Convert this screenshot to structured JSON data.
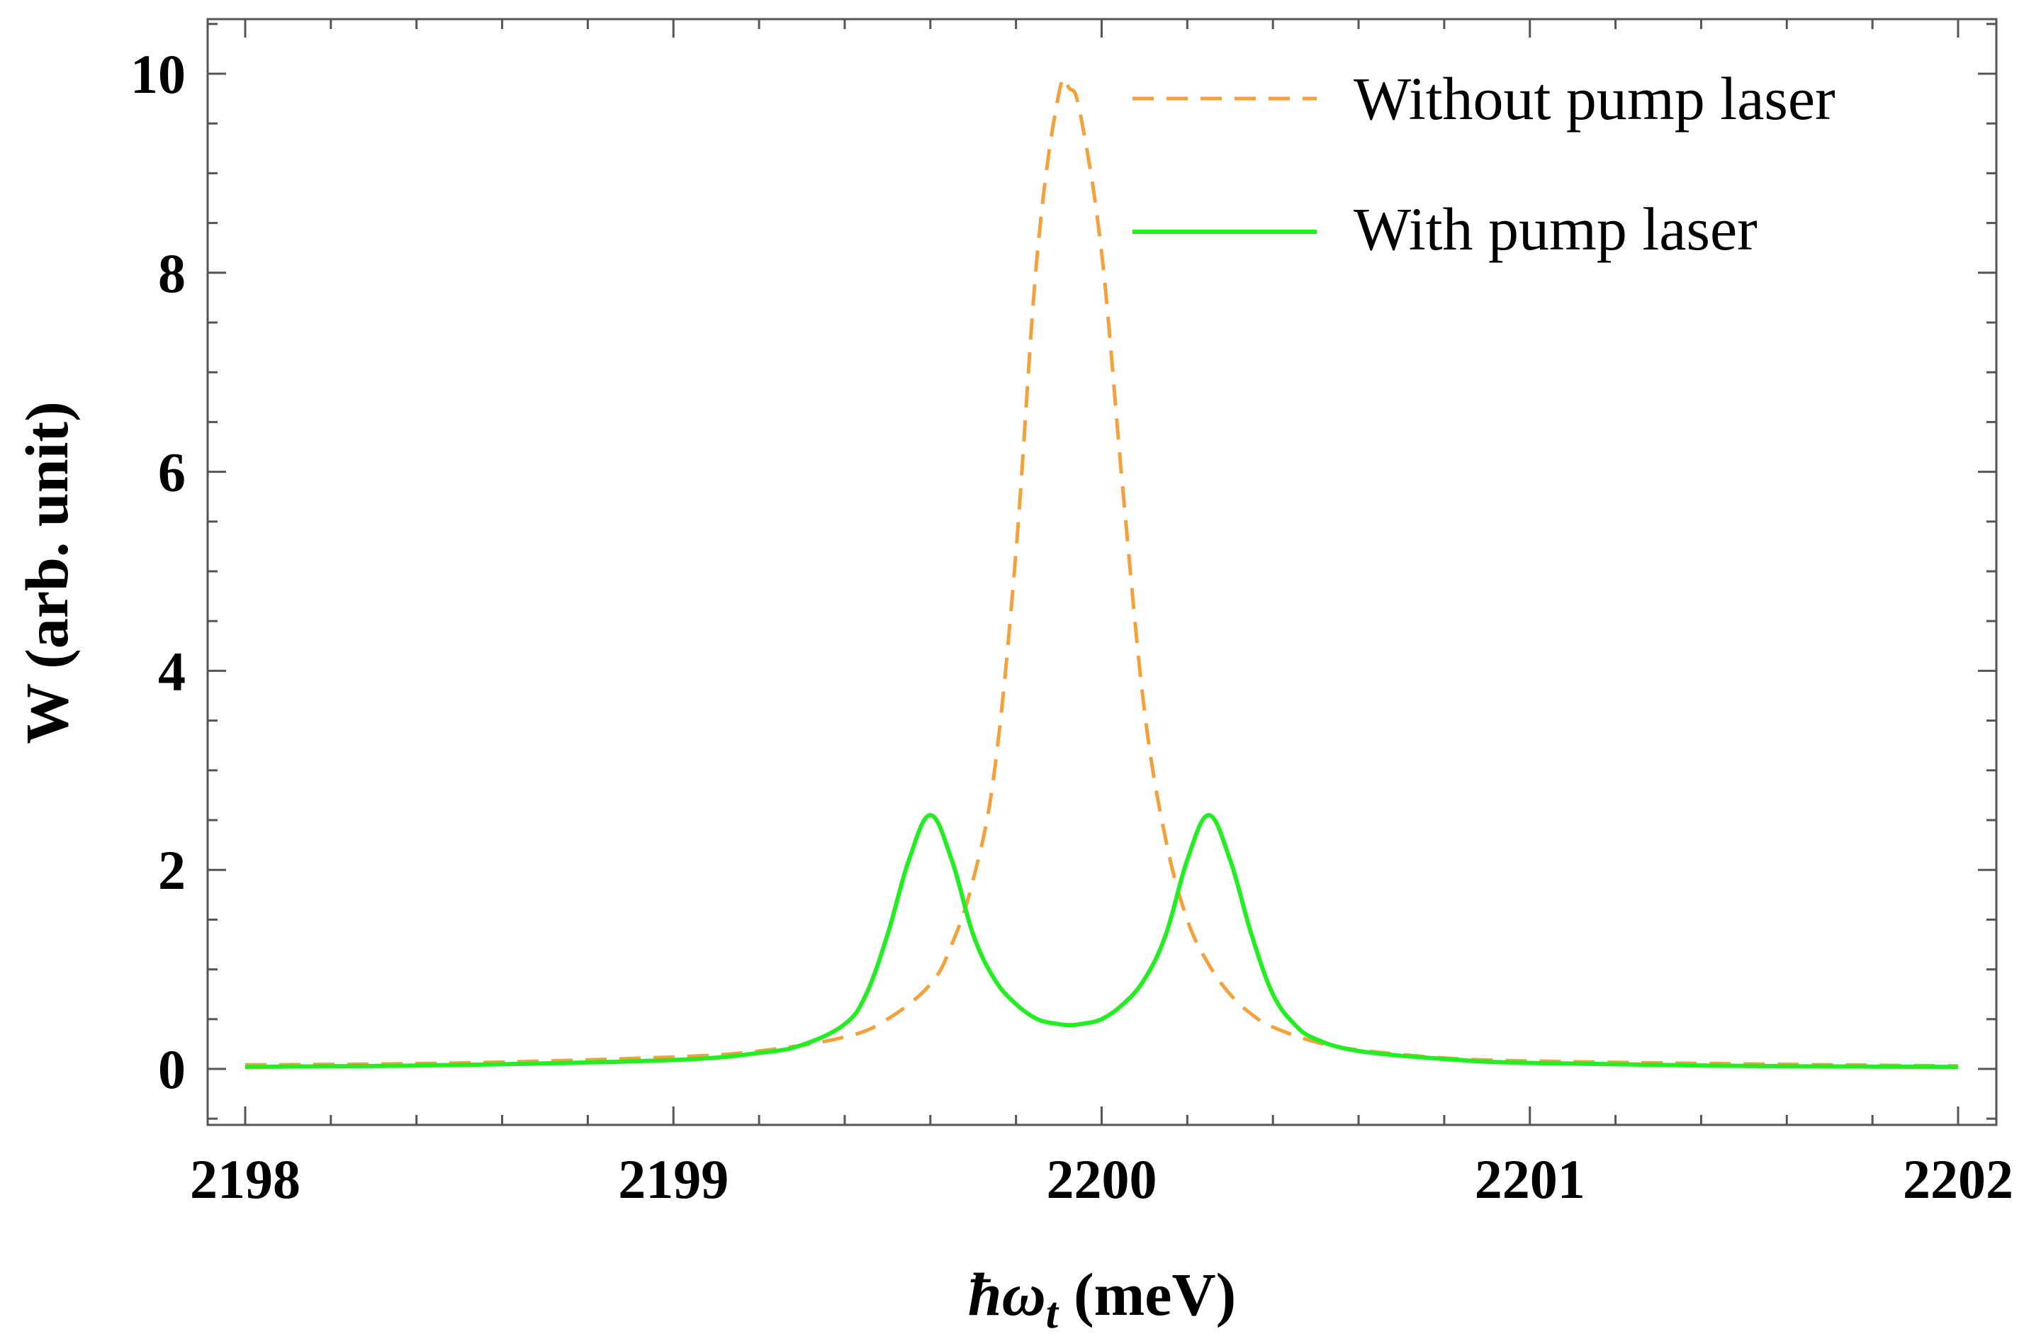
{
  "chart_data": {
    "type": "line",
    "title": "",
    "xlabel": "ħω_t (meV)",
    "xlabel_main": "ħω",
    "xlabel_sub": "t",
    "xlabel_unit": "(meV)",
    "ylabel": "W (arb. unit)",
    "xlim": [
      1998,
      2202
    ],
    "xlim_effective": [
      2197.95,
      2202.1
    ],
    "ylim": [
      -0.55,
      10.55
    ],
    "x_ticks": [
      2198,
      2199,
      2200,
      2201,
      2202
    ],
    "x_tick_labels": [
      "2198",
      "2199",
      "2200",
      "2201",
      "2202"
    ],
    "y_ticks": [
      0,
      2,
      4,
      6,
      8,
      10
    ],
    "y_tick_labels": [
      "0",
      "2",
      "4",
      "6",
      "8",
      "10"
    ],
    "grid": false,
    "legend_position": "top-right",
    "series": [
      {
        "name": "Without pump laser",
        "color": "#f5a13a",
        "style": "dashed",
        "x": [
          2198.0,
          2198.5,
          2199.0,
          2199.2,
          2199.4,
          2199.5,
          2199.6,
          2199.65,
          2199.7,
          2199.75,
          2199.8,
          2199.85,
          2199.9,
          2199.925,
          2199.95,
          2200.0,
          2200.05,
          2200.1,
          2200.15,
          2200.2,
          2200.25,
          2200.3,
          2200.35,
          2200.4,
          2200.5,
          2200.6,
          2200.8,
          2201.0,
          2201.5,
          2202.0
        ],
        "y": [
          0.04,
          0.06,
          0.12,
          0.18,
          0.32,
          0.5,
          0.85,
          1.25,
          1.9,
          3.0,
          5.2,
          8.2,
          9.8,
          9.85,
          9.6,
          8.2,
          5.8,
          3.6,
          2.3,
          1.5,
          1.05,
          0.75,
          0.55,
          0.42,
          0.27,
          0.19,
          0.11,
          0.08,
          0.05,
          0.03
        ]
      },
      {
        "name": "With pump laser",
        "color": "#22ee22",
        "style": "solid",
        "x": [
          2198.0,
          2198.5,
          2199.0,
          2199.2,
          2199.3,
          2199.4,
          2199.45,
          2199.5,
          2199.55,
          2199.6,
          2199.65,
          2199.7,
          2199.75,
          2199.8,
          2199.85,
          2199.9,
          2199.925,
          2199.95,
          2200.0,
          2200.05,
          2200.1,
          2200.15,
          2200.2,
          2200.25,
          2200.3,
          2200.35,
          2200.4,
          2200.45,
          2200.5,
          2200.6,
          2200.8,
          2201.0,
          2201.5,
          2202.0
        ],
        "y": [
          0.02,
          0.04,
          0.09,
          0.16,
          0.24,
          0.45,
          0.75,
          1.35,
          2.1,
          2.55,
          2.1,
          1.35,
          0.9,
          0.65,
          0.5,
          0.45,
          0.44,
          0.45,
          0.5,
          0.65,
          0.9,
          1.35,
          2.1,
          2.55,
          2.1,
          1.35,
          0.75,
          0.45,
          0.3,
          0.18,
          0.1,
          0.06,
          0.03,
          0.02
        ]
      }
    ]
  }
}
